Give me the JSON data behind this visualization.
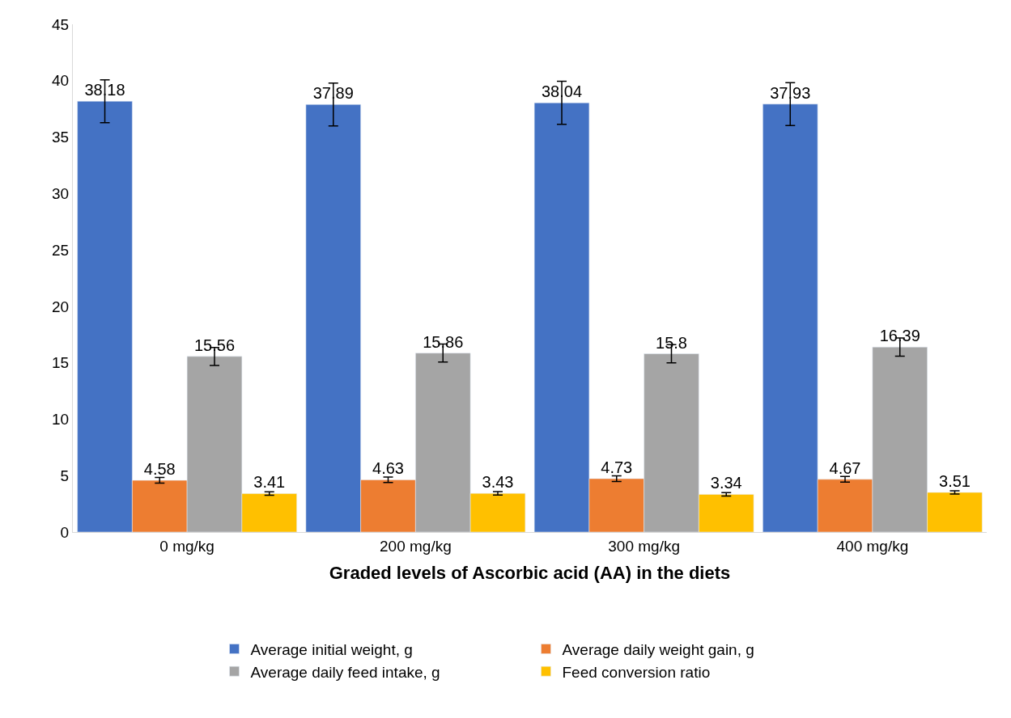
{
  "chart_data": {
    "type": "bar",
    "xlabel": "Graded levels of Ascorbic acid (AA) in the diets",
    "categories": [
      "0 mg/kg",
      "200 mg/kg",
      "300 mg/kg",
      "400 mg/kg"
    ],
    "series": [
      {
        "name": "Average initial weight, g",
        "color": "#4472c4",
        "values": [
          38.18,
          37.89,
          38.04,
          37.93
        ],
        "errors": [
          1.9,
          1.9,
          1.9,
          1.9
        ]
      },
      {
        "name": "Average daily weight gain, g",
        "color": "#ed7d31",
        "values": [
          4.58,
          4.63,
          4.73,
          4.67
        ],
        "errors": [
          0.25,
          0.25,
          0.25,
          0.25
        ]
      },
      {
        "name": "Average daily feed intake, g",
        "color": "#a5a5a5",
        "values": [
          15.56,
          15.86,
          15.8,
          16.39
        ],
        "errors": [
          0.8,
          0.8,
          0.8,
          0.8
        ]
      },
      {
        "name": "Feed conversion ratio",
        "color": "#ffc000",
        "values": [
          3.41,
          3.43,
          3.34,
          3.51
        ],
        "errors": [
          0.15,
          0.15,
          0.15,
          0.15
        ]
      }
    ],
    "ylim": [
      0,
      45
    ],
    "yticks": [
      0,
      5,
      10,
      15,
      20,
      25,
      30,
      35,
      40,
      45
    ],
    "data_labels": true,
    "legend": "bottom"
  }
}
